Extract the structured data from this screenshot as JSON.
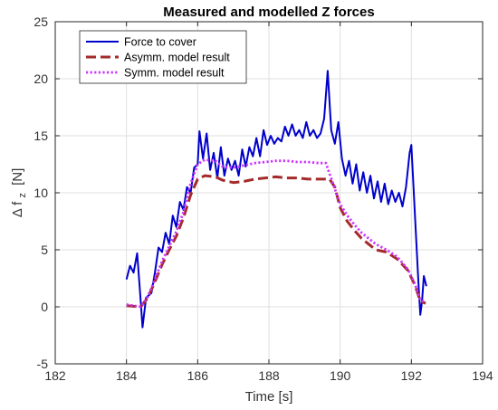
{
  "chart_data": {
    "type": "line",
    "title": "Measured and modelled Z forces",
    "xlabel": "Time [s]",
    "ylabel_main": "Δ f",
    "ylabel_sub": "z",
    "ylabel_unit": "[N]",
    "xlim": [
      182,
      194
    ],
    "ylim": [
      -5,
      25
    ],
    "xticks": [
      182,
      184,
      186,
      188,
      190,
      192,
      194
    ],
    "yticks": [
      -5,
      0,
      5,
      10,
      15,
      20,
      25
    ],
    "grid": true,
    "legend_position": "top-left",
    "series": [
      {
        "name": "Force to cover",
        "color": "#0000cc",
        "style": "solid",
        "points": [
          [
            184.0,
            2.4
          ],
          [
            184.1,
            3.6
          ],
          [
            184.2,
            3.0
          ],
          [
            184.3,
            4.7
          ],
          [
            184.4,
            0.5
          ],
          [
            184.45,
            -1.8
          ],
          [
            184.55,
            0.8
          ],
          [
            184.7,
            1.2
          ],
          [
            184.8,
            3.0
          ],
          [
            184.9,
            5.2
          ],
          [
            185.0,
            4.8
          ],
          [
            185.1,
            6.5
          ],
          [
            185.2,
            5.5
          ],
          [
            185.3,
            8.0
          ],
          [
            185.4,
            7.0
          ],
          [
            185.5,
            9.2
          ],
          [
            185.6,
            8.5
          ],
          [
            185.7,
            10.5
          ],
          [
            185.8,
            10.0
          ],
          [
            185.9,
            12.2
          ],
          [
            186.0,
            12.5
          ],
          [
            186.05,
            15.4
          ],
          [
            186.15,
            13.0
          ],
          [
            186.25,
            15.2
          ],
          [
            186.35,
            12.0
          ],
          [
            186.45,
            13.5
          ],
          [
            186.55,
            11.3
          ],
          [
            186.65,
            14.0
          ],
          [
            186.75,
            11.5
          ],
          [
            186.85,
            13.0
          ],
          [
            186.95,
            12.0
          ],
          [
            187.05,
            12.8
          ],
          [
            187.15,
            11.5
          ],
          [
            187.25,
            13.8
          ],
          [
            187.35,
            12.3
          ],
          [
            187.45,
            14.0
          ],
          [
            187.55,
            13.2
          ],
          [
            187.65,
            14.8
          ],
          [
            187.75,
            13.2
          ],
          [
            187.85,
            15.5
          ],
          [
            187.95,
            14.2
          ],
          [
            188.05,
            15.0
          ],
          [
            188.15,
            14.3
          ],
          [
            188.25,
            14.8
          ],
          [
            188.35,
            14.5
          ],
          [
            188.45,
            15.8
          ],
          [
            188.55,
            15.0
          ],
          [
            188.65,
            16.0
          ],
          [
            188.75,
            15.0
          ],
          [
            188.85,
            15.5
          ],
          [
            188.95,
            14.8
          ],
          [
            189.05,
            16.2
          ],
          [
            189.15,
            15.0
          ],
          [
            189.25,
            15.5
          ],
          [
            189.35,
            14.8
          ],
          [
            189.45,
            15.2
          ],
          [
            189.55,
            16.5
          ],
          [
            189.65,
            20.7
          ],
          [
            189.75,
            15.5
          ],
          [
            189.85,
            14.3
          ],
          [
            189.95,
            16.2
          ],
          [
            190.05,
            13.0
          ],
          [
            190.15,
            11.5
          ],
          [
            190.25,
            12.8
          ],
          [
            190.35,
            10.8
          ],
          [
            190.45,
            12.5
          ],
          [
            190.55,
            10.2
          ],
          [
            190.65,
            11.8
          ],
          [
            190.75,
            10.0
          ],
          [
            190.85,
            11.5
          ],
          [
            190.95,
            9.5
          ],
          [
            191.05,
            11.0
          ],
          [
            191.15,
            9.2
          ],
          [
            191.25,
            10.8
          ],
          [
            191.35,
            9.0
          ],
          [
            191.45,
            10.2
          ],
          [
            191.55,
            9.2
          ],
          [
            191.65,
            10.0
          ],
          [
            191.75,
            8.8
          ],
          [
            191.85,
            10.5
          ],
          [
            191.95,
            13.5
          ],
          [
            192.0,
            14.2
          ],
          [
            192.1,
            8.0
          ],
          [
            192.2,
            2.0
          ],
          [
            192.25,
            -0.7
          ],
          [
            192.3,
            0.5
          ],
          [
            192.35,
            2.7
          ],
          [
            192.42,
            1.8
          ]
        ]
      },
      {
        "name": "Asymm. model result",
        "color": "#a52a2a",
        "style": "dashed",
        "points": [
          [
            184.0,
            0.1
          ],
          [
            184.4,
            0.0
          ],
          [
            184.6,
            0.8
          ],
          [
            184.8,
            2.2
          ],
          [
            185.0,
            3.7
          ],
          [
            185.2,
            5.0
          ],
          [
            185.4,
            6.2
          ],
          [
            185.6,
            7.8
          ],
          [
            185.8,
            9.8
          ],
          [
            186.0,
            11.2
          ],
          [
            186.2,
            11.5
          ],
          [
            186.5,
            11.4
          ],
          [
            186.7,
            11.1
          ],
          [
            187.0,
            10.9
          ],
          [
            187.3,
            11.0
          ],
          [
            187.6,
            11.2
          ],
          [
            187.9,
            11.3
          ],
          [
            188.2,
            11.4
          ],
          [
            188.5,
            11.3
          ],
          [
            188.8,
            11.3
          ],
          [
            189.1,
            11.2
          ],
          [
            189.4,
            11.2
          ],
          [
            189.7,
            11.2
          ],
          [
            189.85,
            10.5
          ],
          [
            190.0,
            8.7
          ],
          [
            190.2,
            7.5
          ],
          [
            190.4,
            6.7
          ],
          [
            190.6,
            6.0
          ],
          [
            190.8,
            5.5
          ],
          [
            191.0,
            5.0
          ],
          [
            191.3,
            4.8
          ],
          [
            191.6,
            4.2
          ],
          [
            191.9,
            3.2
          ],
          [
            192.1,
            1.9
          ],
          [
            192.25,
            0.5
          ],
          [
            192.4,
            0.3
          ]
        ]
      },
      {
        "name": "Symm. model result",
        "color": "#cc33ff",
        "style": "dotted",
        "points": [
          [
            184.0,
            0.2
          ],
          [
            184.4,
            0.0
          ],
          [
            184.6,
            0.9
          ],
          [
            184.8,
            2.4
          ],
          [
            185.0,
            4.0
          ],
          [
            185.2,
            5.3
          ],
          [
            185.4,
            6.6
          ],
          [
            185.6,
            8.3
          ],
          [
            185.8,
            10.8
          ],
          [
            186.0,
            12.5
          ],
          [
            186.2,
            12.9
          ],
          [
            186.5,
            12.8
          ],
          [
            186.7,
            12.3
          ],
          [
            187.0,
            12.2
          ],
          [
            187.3,
            12.4
          ],
          [
            187.6,
            12.6
          ],
          [
            187.9,
            12.7
          ],
          [
            188.2,
            12.8
          ],
          [
            188.5,
            12.8
          ],
          [
            188.8,
            12.7
          ],
          [
            189.1,
            12.7
          ],
          [
            189.4,
            12.6
          ],
          [
            189.6,
            12.6
          ],
          [
            189.8,
            10.8
          ],
          [
            190.0,
            9.0
          ],
          [
            190.2,
            8.0
          ],
          [
            190.4,
            7.2
          ],
          [
            190.6,
            6.5
          ],
          [
            190.8,
            6.0
          ],
          [
            191.0,
            5.5
          ],
          [
            191.3,
            5.0
          ],
          [
            191.6,
            4.4
          ],
          [
            191.9,
            3.3
          ],
          [
            192.1,
            2.0
          ],
          [
            192.25,
            0.6
          ],
          [
            192.4,
            0.4
          ]
        ]
      }
    ]
  }
}
